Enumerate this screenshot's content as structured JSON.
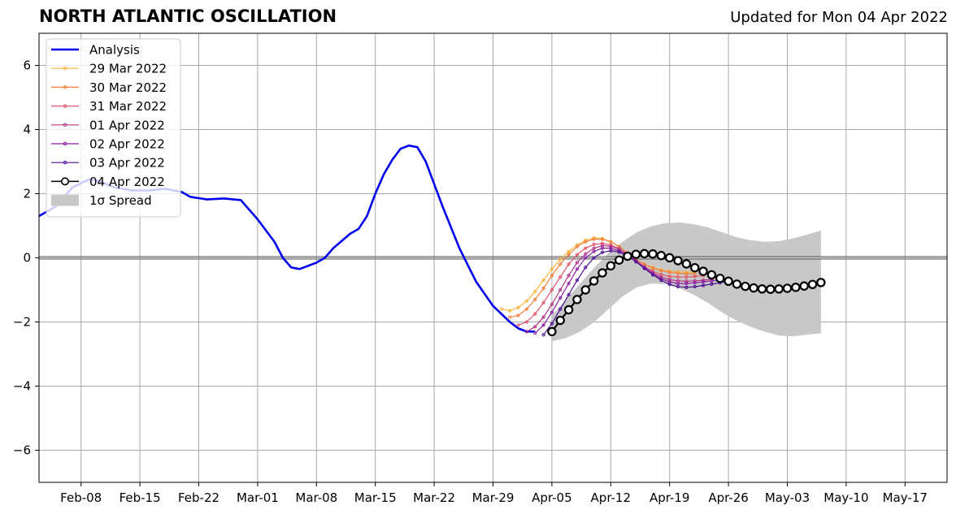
{
  "title": "NORTH ATLANTIC OSCILLATION",
  "updated": "Updated for Mon 04 Apr 2022",
  "chart_data": {
    "type": "line",
    "title": "NORTH ATLANTIC OSCILLATION",
    "subtitle": "Updated for Mon 04 Apr 2022",
    "xlabel": "",
    "ylabel": "",
    "ylim": [
      -7,
      7
    ],
    "xlim": [
      "2022-02-03",
      "2022-05-22"
    ],
    "grid": true,
    "legend_position": "top-left",
    "x_ticks": [
      "2022-02-08",
      "2022-02-15",
      "2022-02-22",
      "2022-03-01",
      "2022-03-08",
      "2022-03-15",
      "2022-03-22",
      "2022-03-29",
      "2022-04-05",
      "2022-04-12",
      "2022-04-19",
      "2022-04-26",
      "2022-05-03",
      "2022-05-10",
      "2022-05-17"
    ],
    "x_tick_labels": [
      "Feb-08",
      "Feb-15",
      "Feb-22",
      "Mar-01",
      "Mar-08",
      "Mar-15",
      "Mar-22",
      "Mar-29",
      "Apr-05",
      "Apr-12",
      "Apr-19",
      "Apr-26",
      "May-03",
      "May-10",
      "May-17"
    ],
    "y_ticks": [
      -6,
      -4,
      -2,
      0,
      2,
      4,
      6
    ],
    "y_tick_labels": [
      "−6",
      "−4",
      "−2",
      "0",
      "2",
      "4",
      "6"
    ],
    "analysis": {
      "name": "Analysis",
      "color": "#0000ee",
      "x": [
        "2022-02-03",
        "2022-02-05",
        "2022-02-07",
        "2022-02-09",
        "2022-02-10",
        "2022-02-12",
        "2022-02-14",
        "2022-02-16",
        "2022-02-18",
        "2022-02-20",
        "2022-02-21",
        "2022-02-23",
        "2022-02-25",
        "2022-02-27",
        "2022-02-28",
        "2022-03-01",
        "2022-03-03",
        "2022-03-04",
        "2022-03-05",
        "2022-03-06",
        "2022-03-08",
        "2022-03-09",
        "2022-03-10",
        "2022-03-12",
        "2022-03-13",
        "2022-03-14",
        "2022-03-15",
        "2022-03-16",
        "2022-03-17",
        "2022-03-18",
        "2022-03-19",
        "2022-03-20",
        "2022-03-21",
        "2022-03-22",
        "2022-03-23",
        "2022-03-25",
        "2022-03-27",
        "2022-03-29",
        "2022-03-31",
        "2022-04-01",
        "2022-04-02",
        "2022-04-03"
      ],
      "y": [
        1.3,
        1.6,
        2.2,
        2.45,
        2.4,
        2.2,
        2.1,
        2.1,
        2.15,
        2.05,
        1.9,
        1.82,
        1.85,
        1.8,
        1.5,
        1.2,
        0.5,
        0.0,
        -0.3,
        -0.35,
        -0.15,
        0.0,
        0.3,
        0.75,
        0.9,
        1.3,
        2.0,
        2.6,
        3.05,
        3.4,
        3.5,
        3.45,
        3.0,
        2.3,
        1.6,
        0.3,
        -0.75,
        -1.5,
        -2.0,
        -2.2,
        -2.3,
        -2.3
      ]
    },
    "forecasts": [
      {
        "name": "29 Mar 2022",
        "color": "#fbb43c",
        "start": "2022-03-30",
        "y": [
          -1.6,
          -1.65,
          -1.55,
          -1.35,
          -1.05,
          -0.7,
          -0.35,
          -0.05,
          0.2,
          0.4,
          0.55,
          0.62,
          0.6,
          0.5,
          0.35,
          0.15,
          -0.05,
          -0.2,
          -0.3,
          -0.38,
          -0.42,
          -0.44,
          -0.45,
          -0.45
        ]
      },
      {
        "name": "30 Mar 2022",
        "color": "#f0803c",
        "start": "2022-03-31",
        "y": [
          -1.85,
          -1.8,
          -1.6,
          -1.3,
          -0.95,
          -0.55,
          -0.2,
          0.1,
          0.35,
          0.5,
          0.58,
          0.58,
          0.5,
          0.35,
          0.15,
          -0.05,
          -0.2,
          -0.32,
          -0.4,
          -0.45,
          -0.48,
          -0.5,
          -0.5
        ]
      },
      {
        "name": "31 Mar 2022",
        "color": "#e0566b",
        "start": "2022-04-01",
        "y": [
          -2.1,
          -2.0,
          -1.75,
          -1.4,
          -1.0,
          -0.6,
          -0.2,
          0.1,
          0.3,
          0.42,
          0.45,
          0.4,
          0.28,
          0.1,
          -0.1,
          -0.28,
          -0.42,
          -0.52,
          -0.58,
          -0.6,
          -0.6,
          -0.58,
          -0.55
        ]
      },
      {
        "name": "01 Apr 2022",
        "color": "#b5368a",
        "start": "2022-04-02",
        "y": [
          -2.3,
          -2.15,
          -1.85,
          -1.45,
          -1.0,
          -0.55,
          -0.15,
          0.12,
          0.3,
          0.38,
          0.36,
          0.28,
          0.12,
          -0.08,
          -0.28,
          -0.46,
          -0.6,
          -0.68,
          -0.72,
          -0.73,
          -0.72,
          -0.7,
          -0.67
        ]
      },
      {
        "name": "02 Apr 2022",
        "color": "#8a1fa3",
        "start": "2022-04-03",
        "y": [
          -2.35,
          -2.1,
          -1.7,
          -1.25,
          -0.8,
          -0.35,
          0.0,
          0.2,
          0.3,
          0.3,
          0.22,
          0.08,
          -0.12,
          -0.32,
          -0.5,
          -0.65,
          -0.75,
          -0.8,
          -0.8,
          -0.78,
          -0.75,
          -0.72,
          -0.68
        ]
      },
      {
        "name": "03 Apr 2022",
        "color": "#4b0f94",
        "start": "2022-04-04",
        "y": [
          -2.4,
          -2.05,
          -1.6,
          -1.15,
          -0.7,
          -0.3,
          0.0,
          0.17,
          0.22,
          0.18,
          0.06,
          -0.12,
          -0.33,
          -0.53,
          -0.7,
          -0.83,
          -0.9,
          -0.92,
          -0.9,
          -0.86,
          -0.82,
          -0.78,
          -0.73
        ]
      },
      {
        "name": "04 Apr 2022",
        "color": "#000000",
        "start": "2022-04-05",
        "y": [
          -2.3,
          -1.95,
          -1.62,
          -1.3,
          -1.0,
          -0.72,
          -0.47,
          -0.25,
          -0.07,
          0.05,
          0.11,
          0.13,
          0.12,
          0.07,
          0.0,
          -0.09,
          -0.19,
          -0.31,
          -0.42,
          -0.53,
          -0.64,
          -0.73,
          -0.82,
          -0.89,
          -0.94,
          -0.97,
          -0.98,
          -0.97,
          -0.95,
          -0.92,
          -0.88,
          -0.83,
          -0.77
        ]
      }
    ],
    "spread": {
      "name": "1σ Spread",
      "color": "#c8c8c8",
      "x_start": "2022-04-05",
      "x_end": "2022-05-07",
      "upper": [
        -1.8,
        -1.3,
        -0.8,
        -0.3,
        0.15,
        0.5,
        0.8,
        0.98,
        1.08,
        1.1,
        1.05,
        0.95,
        0.8,
        0.65,
        0.55,
        0.5,
        0.52,
        0.6,
        0.72,
        0.85
      ],
      "lower": [
        -2.6,
        -2.5,
        -2.3,
        -2.0,
        -1.6,
        -1.2,
        -0.92,
        -0.8,
        -0.82,
        -0.95,
        -1.15,
        -1.4,
        -1.7,
        -1.95,
        -2.15,
        -2.3,
        -2.42,
        -2.45,
        -2.4,
        -2.35
      ]
    }
  }
}
